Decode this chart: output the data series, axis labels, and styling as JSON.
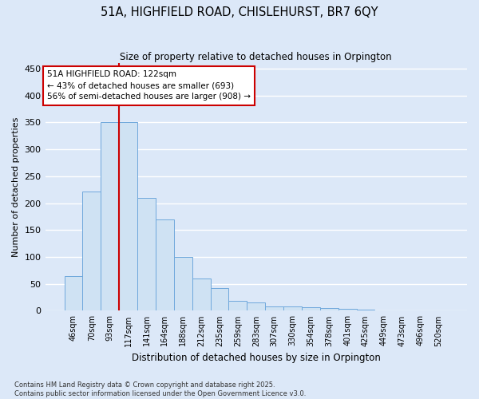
{
  "title_line1": "51A, HIGHFIELD ROAD, CHISLEHURST, BR7 6QY",
  "title_line2": "Size of property relative to detached houses in Orpington",
  "xlabel": "Distribution of detached houses by size in Orpington",
  "ylabel": "Number of detached properties",
  "categories": [
    "46sqm",
    "70sqm",
    "93sqm",
    "117sqm",
    "141sqm",
    "164sqm",
    "188sqm",
    "212sqm",
    "235sqm",
    "259sqm",
    "283sqm",
    "307sqm",
    "330sqm",
    "354sqm",
    "378sqm",
    "401sqm",
    "425sqm",
    "449sqm",
    "473sqm",
    "496sqm",
    "520sqm"
  ],
  "values": [
    65,
    222,
    350,
    350,
    210,
    170,
    100,
    60,
    42,
    18,
    15,
    8,
    8,
    6,
    5,
    4,
    2,
    1,
    0,
    0,
    1
  ],
  "bar_color": "#cfe2f3",
  "bar_edge_color": "#6fa8dc",
  "bg_color": "#dce8f8",
  "grid_color": "#ffffff",
  "vline_x": 3.0,
  "vline_color": "#cc0000",
  "annotation_text": "51A HIGHFIELD ROAD: 122sqm\n← 43% of detached houses are smaller (693)\n56% of semi-detached houses are larger (908) →",
  "annotation_box_color": "#ffffff",
  "annotation_border_color": "#cc0000",
  "ylim": [
    0,
    460
  ],
  "yticks": [
    0,
    50,
    100,
    150,
    200,
    250,
    300,
    350,
    400,
    450
  ],
  "footer_line1": "Contains HM Land Registry data © Crown copyright and database right 2025.",
  "footer_line2": "Contains public sector information licensed under the Open Government Licence v3.0."
}
